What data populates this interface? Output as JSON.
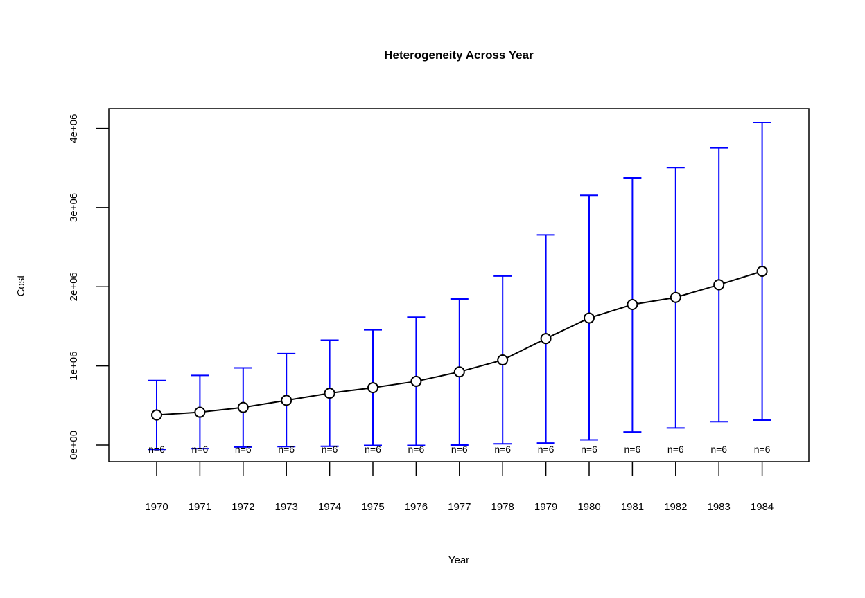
{
  "chart_data": {
    "type": "line",
    "title": "Heterogeneity Across Year",
    "xlabel": "Year",
    "ylabel": "Cost",
    "categories": [
      "1970",
      "1971",
      "1972",
      "1973",
      "1974",
      "1975",
      "1976",
      "1977",
      "1978",
      "1979",
      "1980",
      "1981",
      "1982",
      "1983",
      "1984"
    ],
    "ylim": [
      -210000,
      4250000
    ],
    "yticks": [
      0,
      1000000,
      2000000,
      3000000,
      4000000
    ],
    "ytick_labels": [
      "0e+00",
      "1e+06",
      "2e+06",
      "3e+06",
      "4e+06"
    ],
    "series": [
      {
        "means": [
          380000,
          415000,
          475000,
          565000,
          655000,
          725000,
          805000,
          925000,
          1075000,
          1345000,
          1605000,
          1775000,
          1865000,
          2025000,
          2195000
        ],
        "upper": [
          815000,
          880000,
          975000,
          1155000,
          1325000,
          1455000,
          1615000,
          1845000,
          2135000,
          2655000,
          3155000,
          3375000,
          3505000,
          3755000,
          4075000
        ],
        "lower": [
          -55000,
          -45000,
          -25000,
          -20000,
          -15000,
          -5000,
          -5000,
          0,
          15000,
          25000,
          65000,
          165000,
          215000,
          295000,
          315000
        ]
      }
    ],
    "n_labels": [
      "n=6",
      "n=6",
      "n=6",
      "n=6",
      "n=6",
      "n=6",
      "n=6",
      "n=6",
      "n=6",
      "n=6",
      "n=6",
      "n=6",
      "n=6",
      "n=6",
      "n=6"
    ],
    "grid": false,
    "colors": {
      "error_bar": "#0000ff",
      "line": "#000000"
    }
  }
}
